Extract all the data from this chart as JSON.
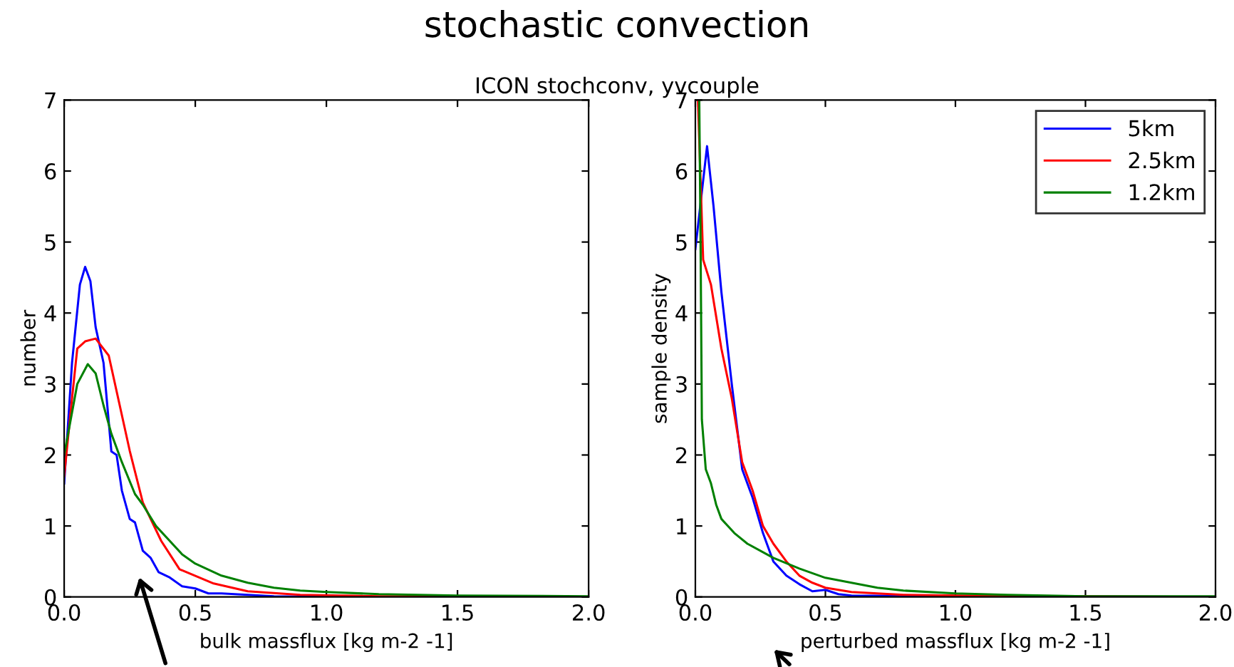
{
  "chart_data": [
    {
      "type": "line",
      "title": "stochastic convection",
      "subtitle": "ICON stochconv, yvcouple",
      "xlabel": "bulk massflux [kg m-2 -1]",
      "ylabel": "number",
      "xlim": [
        0,
        2
      ],
      "ylim": [
        0,
        7
      ],
      "xticks": [
        {
          "value": 0,
          "label": "0.0"
        },
        {
          "value": 0.5,
          "label": "0.5"
        },
        {
          "value": 1,
          "label": "1.0"
        },
        {
          "value": 1.5,
          "label": "1.5"
        },
        {
          "value": 2,
          "label": "2.0"
        }
      ],
      "yticks": [
        0,
        1,
        2,
        3,
        4,
        5,
        6,
        7
      ],
      "grid": false,
      "legend": false,
      "series": [
        {
          "color": "#0000ff",
          "x": [
            0,
            0.03,
            0.06,
            0.08,
            0.1,
            0.12,
            0.15,
            0.18,
            0.2,
            0.22,
            0.25,
            0.27,
            0.3,
            0.33,
            0.36,
            0.4,
            0.45,
            0.5,
            0.55,
            0.6,
            0.7,
            0.8,
            1.0,
            2.0
          ],
          "values": [
            1.6,
            3.3,
            4.4,
            4.65,
            4.45,
            3.8,
            3.3,
            2.05,
            2.0,
            1.5,
            1.1,
            1.05,
            0.65,
            0.55,
            0.35,
            0.28,
            0.15,
            0.12,
            0.05,
            0.05,
            0.03,
            0.01,
            0,
            0
          ]
        },
        {
          "color": "#ff0000",
          "x": [
            0,
            0.03,
            0.05,
            0.08,
            0.12,
            0.17,
            0.25,
            0.3,
            0.37,
            0.44,
            0.57,
            0.7,
            0.9,
            1.2,
            2.0
          ],
          "values": [
            1.7,
            2.8,
            3.5,
            3.6,
            3.64,
            3.4,
            2.06,
            1.33,
            0.79,
            0.39,
            0.19,
            0.08,
            0.03,
            0.01,
            0
          ]
        },
        {
          "color": "#008000",
          "x": [
            0,
            0.05,
            0.09,
            0.12,
            0.15,
            0.18,
            0.22,
            0.27,
            0.3,
            0.35,
            0.4,
            0.45,
            0.5,
            0.6,
            0.7,
            0.8,
            0.9,
            1.0,
            1.2,
            1.5,
            2.0
          ],
          "values": [
            2.0,
            3.0,
            3.28,
            3.15,
            2.7,
            2.3,
            1.9,
            1.45,
            1.3,
            1.0,
            0.8,
            0.6,
            0.47,
            0.3,
            0.2,
            0.13,
            0.09,
            0.07,
            0.04,
            0.02,
            0.01
          ]
        }
      ]
    },
    {
      "type": "line",
      "xlabel": "perturbed massflux [kg m-2 -1]",
      "ylabel": "sample density",
      "xlim": [
        0,
        2
      ],
      "ylim": [
        0,
        7
      ],
      "xticks": [
        {
          "value": 0,
          "label": "0.0"
        },
        {
          "value": 0.5,
          "label": "0.5"
        },
        {
          "value": 1,
          "label": "1.0"
        },
        {
          "value": 1.5,
          "label": "1.5"
        },
        {
          "value": 2,
          "label": "2.0"
        }
      ],
      "yticks": [
        0,
        1,
        2,
        3,
        4,
        5,
        6,
        7
      ],
      "grid": false,
      "legend": "top right",
      "series": [
        {
          "name": "5km",
          "color": "#0000ff",
          "x": [
            0,
            0.045,
            0.07,
            0.1,
            0.14,
            0.18,
            0.22,
            0.26,
            0.3,
            0.35,
            0.4,
            0.45,
            0.5,
            0.55,
            0.6,
            2.0
          ],
          "values": [
            4.9,
            6.35,
            5.5,
            4.3,
            3.0,
            1.8,
            1.4,
            0.9,
            0.5,
            0.3,
            0.18,
            0.08,
            0.1,
            0.04,
            0.02,
            0
          ]
        },
        {
          "name": "2.5km",
          "color": "#ff0000",
          "x": [
            0.01,
            0.03,
            0.06,
            0.1,
            0.14,
            0.18,
            0.22,
            0.26,
            0.3,
            0.35,
            0.4,
            0.45,
            0.5,
            0.6,
            0.8,
            1.0,
            2.0
          ],
          "values": [
            7.0,
            4.75,
            4.4,
            3.5,
            2.8,
            1.9,
            1.5,
            1.0,
            0.75,
            0.5,
            0.3,
            0.2,
            0.13,
            0.07,
            0.03,
            0.02,
            0
          ]
        },
        {
          "name": "1.2km",
          "color": "#008000",
          "x": [
            0.015,
            0.02,
            0.025,
            0.04,
            0.06,
            0.08,
            0.1,
            0.15,
            0.2,
            0.3,
            0.4,
            0.5,
            0.6,
            0.7,
            0.8,
            1.0,
            1.2,
            1.5,
            2.0
          ],
          "values": [
            7.0,
            5.0,
            2.5,
            1.8,
            1.6,
            1.3,
            1.1,
            0.9,
            0.75,
            0.55,
            0.4,
            0.27,
            0.2,
            0.13,
            0.09,
            0.05,
            0.03,
            0.01,
            0.01
          ]
        }
      ]
    }
  ]
}
